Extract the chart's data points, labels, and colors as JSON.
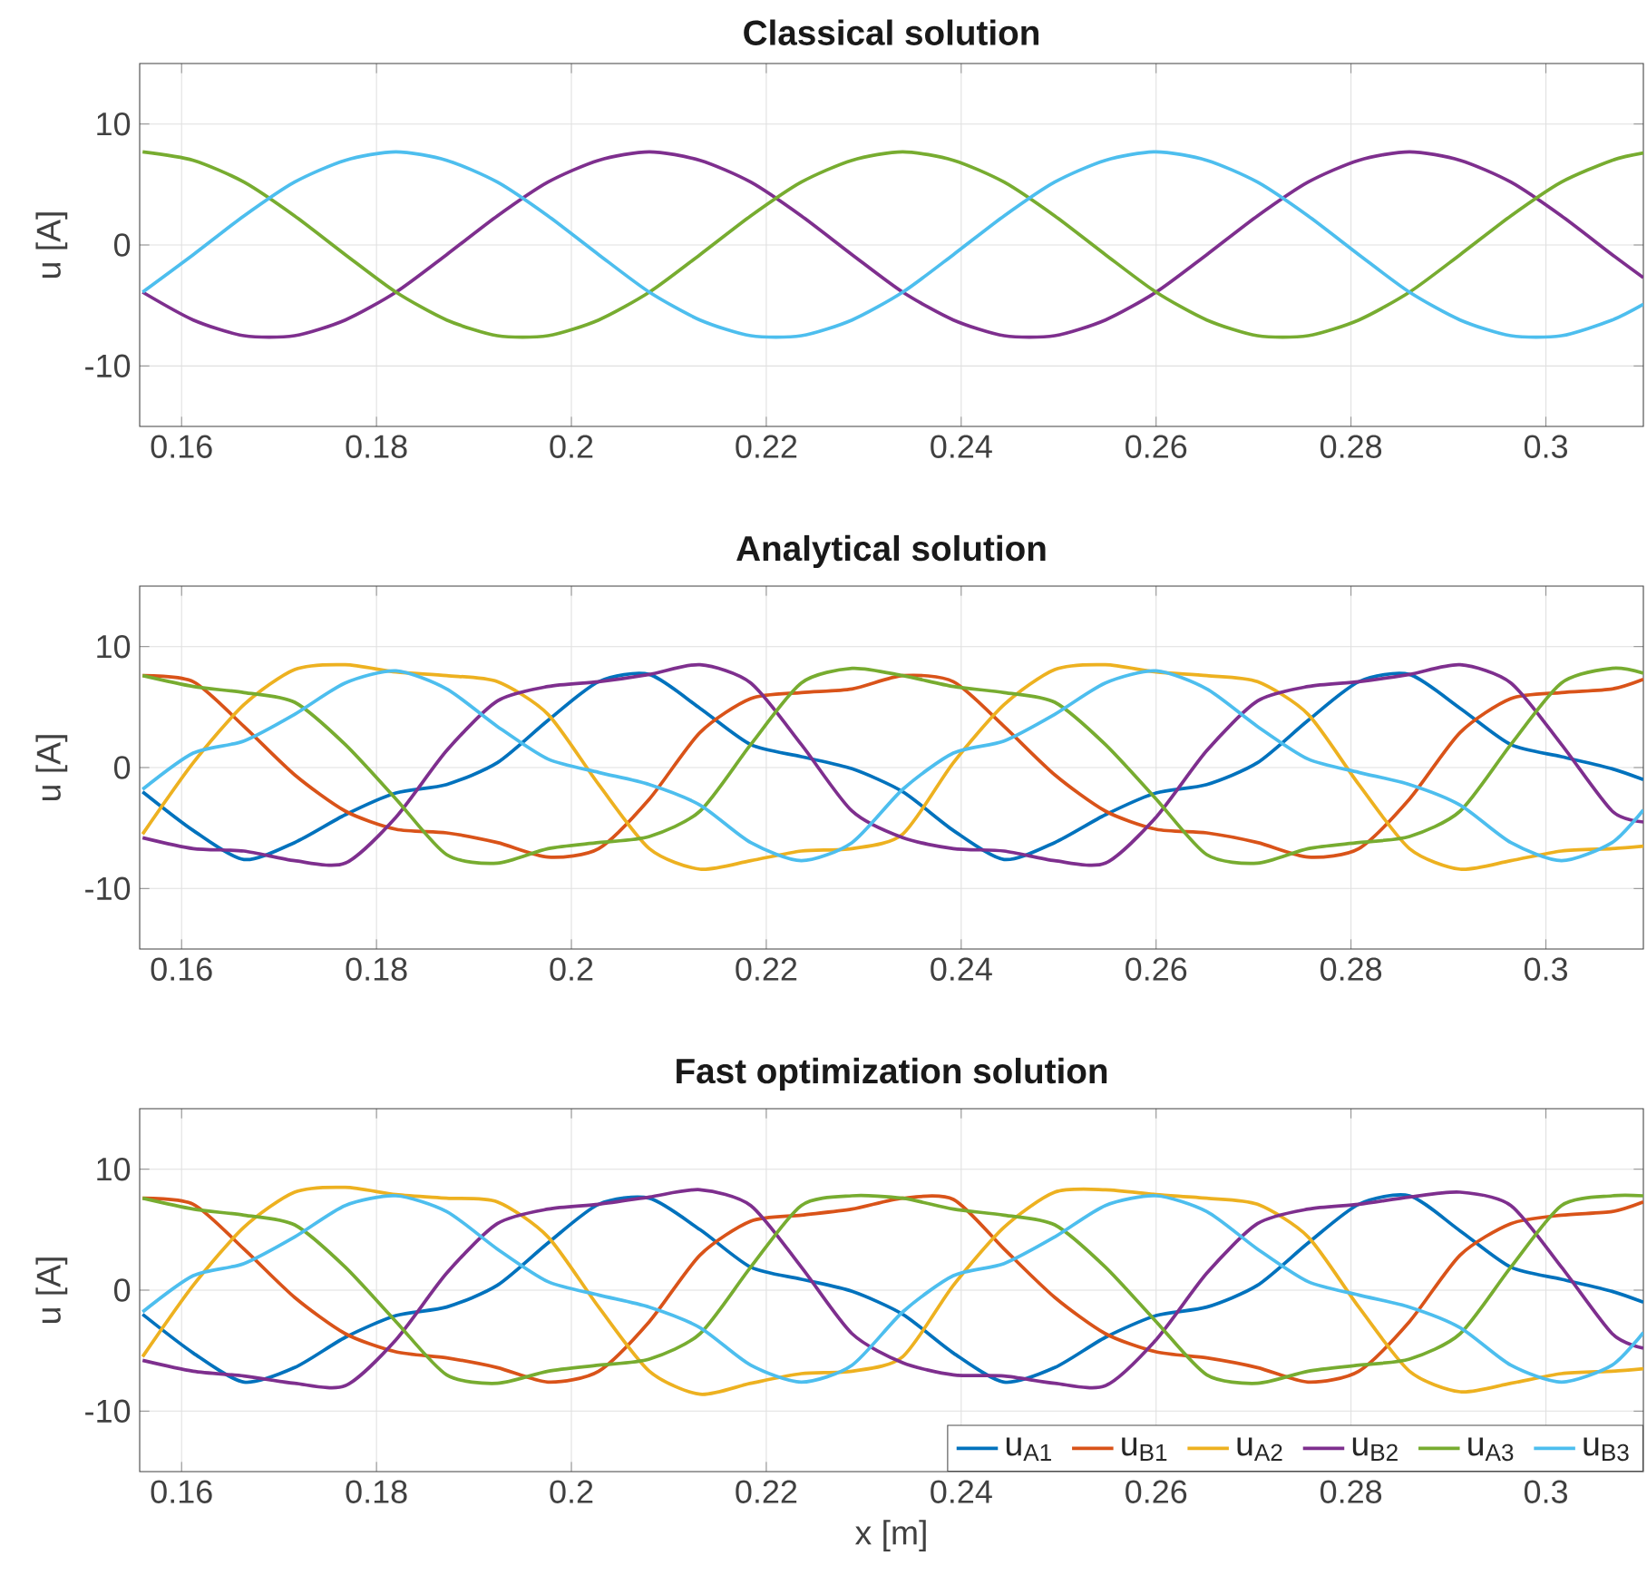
{
  "chart_data": [
    {
      "type": "line",
      "title": "Classical solution",
      "ylabel": "u [A]",
      "xlim": [
        0.1557,
        0.31
      ],
      "ylim": [
        -15,
        15
      ],
      "xticks": [
        0.16,
        0.18,
        0.2,
        0.22,
        0.24,
        0.26,
        0.28,
        0.3
      ],
      "yticks": [
        -10,
        0,
        10
      ],
      "grid": true,
      "x": [
        0.156,
        0.1612,
        0.1664,
        0.1716,
        0.1768,
        0.182,
        0.1872,
        0.1924,
        0.1976,
        0.2028,
        0.208,
        0.2132,
        0.2184,
        0.2236,
        0.2288,
        0.234,
        0.2392,
        0.2444,
        0.2496,
        0.2548,
        0.26,
        0.2652,
        0.2704,
        0.2756,
        0.2808,
        0.286,
        0.2912,
        0.2964,
        0.3016,
        0.3068,
        0.31
      ],
      "series": [
        {
          "color": "#7e2f8e",
          "values": [
            -3.9,
            -6.2,
            -7.5,
            -7.5,
            -6.2,
            -3.9,
            -0.8,
            2.4,
            5.2,
            7.0,
            7.7,
            7.0,
            5.2,
            2.4,
            -0.8,
            -3.9,
            -6.2,
            -7.5,
            -7.5,
            -6.2,
            -3.9,
            -0.8,
            2.4,
            5.2,
            7.0,
            7.7,
            7.0,
            5.2,
            2.4,
            -0.8,
            -2.7
          ]
        },
        {
          "color": "#77ac30",
          "values": [
            7.7,
            7.0,
            5.2,
            2.4,
            -0.8,
            -3.9,
            -6.2,
            -7.5,
            -7.5,
            -6.2,
            -3.9,
            -0.8,
            2.4,
            5.2,
            7.0,
            7.7,
            7.0,
            5.2,
            2.4,
            -0.8,
            -3.9,
            -6.2,
            -7.5,
            -7.5,
            -6.2,
            -3.9,
            -0.8,
            2.4,
            5.2,
            7.0,
            7.6
          ]
        },
        {
          "color": "#4dbeee",
          "values": [
            -3.9,
            -0.8,
            2.4,
            5.2,
            7.0,
            7.7,
            7.0,
            5.2,
            2.4,
            -0.8,
            -3.9,
            -6.2,
            -7.5,
            -7.5,
            -6.2,
            -3.9,
            -0.8,
            2.4,
            5.2,
            7.0,
            7.7,
            7.0,
            5.2,
            2.4,
            -0.8,
            -3.9,
            -6.2,
            -7.5,
            -7.5,
            -6.2,
            -4.9
          ]
        }
      ]
    },
    {
      "type": "line",
      "title": "Analytical solution",
      "ylabel": "u [A]",
      "xlim": [
        0.1557,
        0.31
      ],
      "ylim": [
        -15,
        15
      ],
      "xticks": [
        0.16,
        0.18,
        0.2,
        0.22,
        0.24,
        0.26,
        0.28,
        0.3
      ],
      "yticks": [
        -10,
        0,
        10
      ],
      "grid": true,
      "x": [
        0.156,
        0.1612,
        0.1664,
        0.1716,
        0.1768,
        0.182,
        0.1872,
        0.1924,
        0.1976,
        0.2028,
        0.208,
        0.2132,
        0.2184,
        0.2236,
        0.2288,
        0.234,
        0.2392,
        0.2444,
        0.2496,
        0.2548,
        0.26,
        0.2652,
        0.2704,
        0.2756,
        0.2808,
        0.286,
        0.2912,
        0.2964,
        0.3016,
        0.3068,
        0.31
      ],
      "series": [
        {
          "color": "#0072bd",
          "values": [
            -2.0,
            -5.2,
            -7.6,
            -6.2,
            -3.9,
            -2.1,
            -1.4,
            0.4,
            3.9,
            7.1,
            7.7,
            4.9,
            1.9,
            0.9,
            -0.1,
            -2.0,
            -5.2,
            -7.6,
            -6.2,
            -3.9,
            -2.1,
            -1.4,
            0.4,
            3.9,
            7.1,
            7.7,
            4.9,
            1.9,
            0.9,
            -0.1,
            -1.0
          ]
        },
        {
          "color": "#d95319",
          "values": [
            7.6,
            7.1,
            3.4,
            -0.6,
            -3.6,
            -5.1,
            -5.4,
            -6.2,
            -7.4,
            -6.7,
            -2.6,
            2.9,
            5.7,
            6.2,
            6.5,
            7.6,
            7.1,
            3.4,
            -0.6,
            -3.6,
            -5.1,
            -5.4,
            -6.2,
            -7.4,
            -6.7,
            -2.6,
            2.9,
            5.7,
            6.2,
            6.5,
            7.3
          ]
        },
        {
          "color": "#edb120",
          "values": [
            -5.5,
            0.4,
            5.2,
            8.1,
            8.5,
            7.9,
            7.6,
            7.1,
            4.4,
            -1.4,
            -6.7,
            -8.4,
            -7.7,
            -6.9,
            -6.7,
            -5.5,
            0.4,
            5.2,
            8.1,
            8.5,
            7.9,
            7.6,
            7.1,
            4.4,
            -1.4,
            -6.7,
            -8.4,
            -7.7,
            -6.9,
            -6.7,
            -6.5
          ]
        },
        {
          "color": "#7e2f8e",
          "values": [
            -5.8,
            -6.7,
            -6.9,
            -7.7,
            -7.9,
            -4.1,
            1.4,
            5.5,
            6.7,
            7.1,
            7.7,
            8.5,
            7.0,
            1.9,
            -3.6,
            -5.8,
            -6.7,
            -6.9,
            -7.7,
            -7.9,
            -4.1,
            1.4,
            5.5,
            6.7,
            7.1,
            7.7,
            8.5,
            7.0,
            1.9,
            -3.6,
            -4.5
          ]
        },
        {
          "color": "#77ac30",
          "values": [
            7.6,
            6.7,
            6.2,
            5.4,
            1.9,
            -2.6,
            -7.2,
            -7.9,
            -6.7,
            -6.2,
            -5.7,
            -3.6,
            1.9,
            7.0,
            8.2,
            7.6,
            6.7,
            6.2,
            5.4,
            1.9,
            -2.6,
            -7.2,
            -7.9,
            -6.7,
            -6.2,
            -5.7,
            -3.6,
            1.9,
            7.0,
            8.2,
            7.8
          ]
        },
        {
          "color": "#4dbeee",
          "values": [
            -1.8,
            1.2,
            2.2,
            4.4,
            7.0,
            8.0,
            6.5,
            3.4,
            0.7,
            -0.4,
            -1.4,
            -3.1,
            -6.2,
            -7.7,
            -6.2,
            -1.8,
            1.2,
            2.2,
            4.4,
            7.0,
            8.0,
            6.5,
            3.4,
            0.7,
            -0.4,
            -1.4,
            -3.1,
            -6.2,
            -7.7,
            -6.2,
            -3.5
          ]
        }
      ]
    },
    {
      "type": "line",
      "title": "Fast optimization solution",
      "xlabel": "x [m]",
      "ylabel": "u [A]",
      "xlim": [
        0.1557,
        0.31
      ],
      "ylim": [
        -15,
        15
      ],
      "xticks": [
        0.16,
        0.18,
        0.2,
        0.22,
        0.24,
        0.26,
        0.28,
        0.3
      ],
      "yticks": [
        -10,
        0,
        10
      ],
      "grid": true,
      "legend": "bottom right",
      "x": [
        0.156,
        0.1612,
        0.1664,
        0.1716,
        0.1768,
        0.182,
        0.1872,
        0.1924,
        0.1976,
        0.2028,
        0.208,
        0.2132,
        0.2184,
        0.2236,
        0.2288,
        0.234,
        0.2392,
        0.2444,
        0.2496,
        0.2548,
        0.26,
        0.2652,
        0.2704,
        0.2756,
        0.2808,
        0.286,
        0.2912,
        0.2964,
        0.3016,
        0.3068,
        0.31
      ],
      "series": [
        {
          "name": "u$_{A1}$",
          "color": "#0072bd",
          "values": [
            -2.0,
            -5.2,
            -7.6,
            -6.4,
            -3.9,
            -2.1,
            -1.4,
            0.4,
            3.9,
            7.1,
            7.6,
            5.0,
            1.9,
            0.9,
            -0.1,
            -2.0,
            -5.2,
            -7.6,
            -6.4,
            -3.9,
            -2.1,
            -1.4,
            0.4,
            3.9,
            7.1,
            7.8,
            4.9,
            1.9,
            0.9,
            -0.1,
            -1.0
          ]
        },
        {
          "name": "u$_{B1}$",
          "color": "#d95319",
          "values": [
            7.6,
            7.1,
            3.4,
            -0.6,
            -3.6,
            -5.1,
            -5.6,
            -6.4,
            -7.6,
            -6.7,
            -2.6,
            2.9,
            5.7,
            6.2,
            6.7,
            7.6,
            7.5,
            3.4,
            -0.6,
            -3.6,
            -5.1,
            -5.6,
            -6.4,
            -7.6,
            -6.7,
            -2.6,
            2.9,
            5.5,
            6.2,
            6.5,
            7.3
          ]
        },
        {
          "name": "u$_{A2}$",
          "color": "#edb120",
          "values": [
            -5.5,
            0.4,
            5.2,
            8.1,
            8.5,
            7.9,
            7.6,
            7.3,
            4.4,
            -1.4,
            -6.7,
            -8.6,
            -7.7,
            -6.9,
            -6.7,
            -5.5,
            0.4,
            5.2,
            8.1,
            8.3,
            7.9,
            7.6,
            7.1,
            4.4,
            -1.4,
            -6.7,
            -8.4,
            -7.7,
            -6.9,
            -6.7,
            -6.5
          ]
        },
        {
          "name": "u$_{B2}$",
          "color": "#7e2f8e",
          "values": [
            -5.8,
            -6.7,
            -7.1,
            -7.7,
            -7.9,
            -4.1,
            1.4,
            5.5,
            6.7,
            7.1,
            7.7,
            8.3,
            7.0,
            1.9,
            -3.6,
            -6.0,
            -7.0,
            -7.1,
            -7.7,
            -7.9,
            -4.1,
            1.4,
            5.5,
            6.7,
            7.1,
            7.7,
            8.1,
            7.0,
            1.9,
            -3.6,
            -4.8
          ]
        },
        {
          "name": "u$_{A3}$",
          "color": "#77ac30",
          "values": [
            7.6,
            6.7,
            6.2,
            5.4,
            1.9,
            -2.6,
            -7.0,
            -7.7,
            -6.7,
            -6.2,
            -5.7,
            -3.6,
            1.9,
            7.0,
            7.8,
            7.6,
            6.7,
            6.2,
            5.4,
            1.9,
            -2.6,
            -7.0,
            -7.7,
            -6.7,
            -6.2,
            -5.7,
            -3.6,
            1.9,
            7.0,
            7.8,
            7.8
          ]
        },
        {
          "name": "u$_{B3}$",
          "color": "#4dbeee",
          "values": [
            -1.8,
            1.2,
            2.2,
            4.4,
            7.0,
            7.8,
            6.5,
            3.4,
            0.7,
            -0.4,
            -1.4,
            -3.1,
            -6.2,
            -7.6,
            -6.2,
            -1.8,
            1.2,
            2.2,
            4.4,
            7.0,
            7.8,
            6.5,
            3.4,
            0.7,
            -0.4,
            -1.4,
            -3.1,
            -6.2,
            -7.6,
            -6.2,
            -3.5
          ]
        }
      ]
    }
  ]
}
